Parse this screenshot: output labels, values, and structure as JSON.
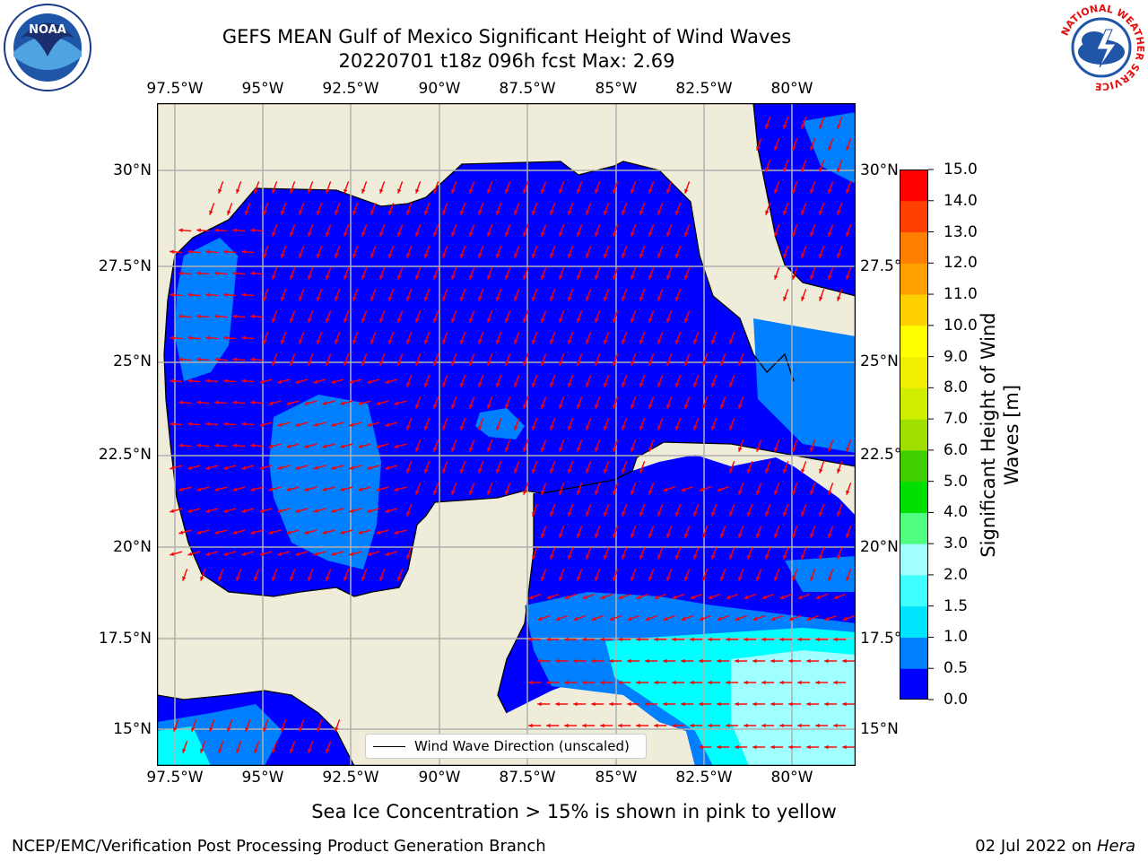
{
  "title": {
    "line1": "GEFS MEAN Gulf of Mexico Significant Height of Wind Waves",
    "line2": "20220701 t18z 096h fcst   Max: 2.69"
  },
  "logos": {
    "left": "NOAA",
    "right_ring": "NATIONAL WEATHER SERVICE"
  },
  "lon_ticks": [
    "97.5°W",
    "95°W",
    "92.5°W",
    "90°W",
    "87.5°W",
    "85°W",
    "82.5°W",
    "80°W"
  ],
  "lat_ticks_left": [
    "30°N",
    "27.5°N",
    "25°N",
    "22.5°N",
    "20°N",
    "17.5°N",
    "15°N"
  ],
  "lat_ticks_right": [
    "30°N",
    "27.5°",
    "25°N",
    "22.5°",
    "20°N",
    "17.5°",
    "15°N"
  ],
  "colorbar": {
    "title_line1": "Significant Height of Wind",
    "title_line2": "Waves [m]",
    "levels": [
      "0.0",
      "0.5",
      "1.0",
      "1.5",
      "2.0",
      "3.0",
      "4.0",
      "5.0",
      "6.0",
      "7.0",
      "8.0",
      "9.0",
      "10.0",
      "11.0",
      "12.0",
      "13.0",
      "14.0",
      "15.0"
    ],
    "colors": [
      "#0000ff",
      "#0080ff",
      "#00e5ff",
      "#40ffff",
      "#a0ffff",
      "#50ff80",
      "#00e000",
      "#40d000",
      "#a0e000",
      "#d0ef00",
      "#f0f000",
      "#ffff00",
      "#ffd000",
      "#ffa000",
      "#ff8000",
      "#ff4000",
      "#ff0000"
    ]
  },
  "legend": {
    "label": "Wind Wave Direction (unscaled)"
  },
  "colors": {
    "land": "#efedda",
    "ocean_low": "#0000ff",
    "ocean_mid": "#0080ff",
    "ocean_high": "#00ffff",
    "arrow": "#ff0000",
    "grid": "#b0b0b0"
  },
  "footer": {
    "subtitle": "Sea Ice Concentration > 15% is shown in pink to yellow",
    "left": "NCEP/EMC/Verification Post Processing Product Generation Branch",
    "right_date": "02 Jul 2022 on ",
    "right_host": "Hera"
  }
}
